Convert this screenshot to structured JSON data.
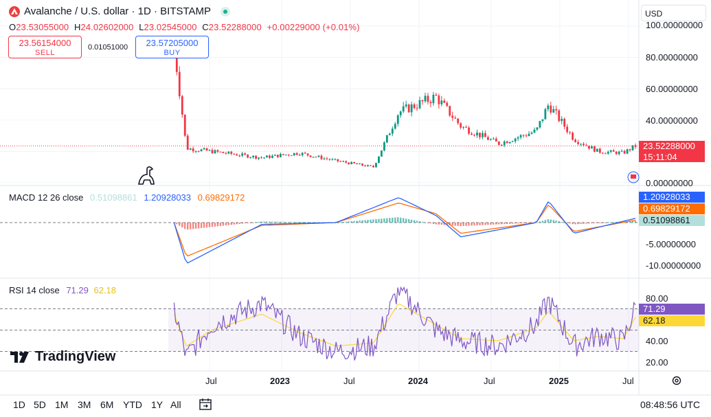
{
  "header": {
    "title": "Avalanche / U.S. dollar · 1D · BITSTAMP",
    "currency": "USD"
  },
  "ohlc": {
    "o_label": "O",
    "o": "23.53055000",
    "h_label": "H",
    "h": "24.02602000",
    "l_label": "L",
    "l": "23.02545000",
    "c_label": "C",
    "c": "23.52288000",
    "change": "+0.00229000 (+0.01%)"
  },
  "trade": {
    "sell_price": "23.56154000",
    "sell_label": "SELL",
    "spread": "0.01051000",
    "buy_price": "23.57205000",
    "buy_label": "BUY"
  },
  "price_axis": {
    "labels": [
      "100.00000000",
      "80.00000000",
      "60.00000000",
      "40.00000000",
      "0.00000000"
    ],
    "last_price": "23.52288000",
    "countdown": "15:11:04"
  },
  "macd": {
    "legend_name": "MACD 12 26 close",
    "hist": "0.51098861",
    "macd": "1.20928033",
    "signal": "0.69829172",
    "axis_labels": [
      "-5.00000000",
      "-10.00000000"
    ]
  },
  "rsi": {
    "legend_name": "RSI 14 close",
    "rsi": "71.29",
    "ma": "62.18",
    "axis_labels": [
      "80.00",
      "40.00",
      "20.00"
    ]
  },
  "time_axis": [
    "Jul",
    "2023",
    "Jul",
    "2024",
    "Jul",
    "2025",
    "Jul"
  ],
  "ranges": [
    "1D",
    "5D",
    "1M",
    "3M",
    "6M",
    "YTD",
    "1Y",
    "All"
  ],
  "clock": "08:48:56 UTC",
  "brand": "TradingView",
  "colors": {
    "up": "#089981",
    "down": "#f23645",
    "macd": "#2962ff",
    "signal": "#ff6d00",
    "hist": "#b2dfdb",
    "rsi": "#7e57c2",
    "rsi_ma": "#fdd835"
  },
  "chart_data": [
    {
      "type": "candlestick",
      "title": "Avalanche / U.S. dollar · 1D · BITSTAMP",
      "x": [
        "2022-06",
        "2022-07",
        "2022-09",
        "2023-01",
        "2023-04",
        "2023-07",
        "2023-10",
        "2023-12",
        "2024-03",
        "2024-05",
        "2024-08",
        "2024-11",
        "2024-12",
        "2025-02",
        "2025-04",
        "2025-06",
        "2025-07"
      ],
      "close": [
        88,
        22,
        20,
        16,
        19,
        14,
        10,
        45,
        55,
        36,
        25,
        33,
        50,
        28,
        20,
        19,
        23.52
      ],
      "ylim": [
        0,
        100
      ]
    },
    {
      "type": "line",
      "title": "MACD 12 26 close",
      "x": [
        "2022-06",
        "2022-07",
        "2023-01",
        "2023-07",
        "2023-12",
        "2024-03",
        "2024-05",
        "2024-11",
        "2024-12",
        "2025-02",
        "2025-07"
      ],
      "series": [
        {
          "name": "MACD",
          "values": [
            0,
            -11.5,
            -0.5,
            0,
            7,
            2,
            -4,
            0,
            6,
            -3,
            1.21
          ]
        },
        {
          "name": "Signal",
          "values": [
            0,
            -9.5,
            -0.8,
            0,
            5.5,
            2.5,
            -3,
            0,
            5,
            -2.5,
            0.7
          ]
        }
      ]
    },
    {
      "type": "line",
      "title": "RSI 14 close",
      "x": [
        "2022-06",
        "2022-07",
        "2022-09",
        "2023-01",
        "2023-04",
        "2023-07",
        "2023-10",
        "2023-12",
        "2024-03",
        "2024-05",
        "2024-08",
        "2024-11",
        "2024-12",
        "2025-02",
        "2025-04",
        "2025-06",
        "2025-07"
      ],
      "series": [
        {
          "name": "RSI",
          "values": [
            70,
            25,
            55,
            75,
            45,
            30,
            35,
            88,
            50,
            40,
            35,
            55,
            78,
            35,
            45,
            40,
            71.29
          ]
        },
        {
          "name": "RSI MA",
          "values": [
            65,
            35,
            50,
            65,
            48,
            35,
            38,
            75,
            55,
            42,
            40,
            52,
            68,
            40,
            44,
            42,
            62.18
          ]
        }
      ],
      "ylim": [
        15,
        90
      ]
    }
  ]
}
